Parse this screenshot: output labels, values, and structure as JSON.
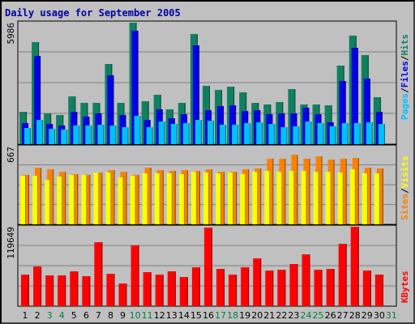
{
  "title": "Daily usage for September 2005",
  "colors": {
    "background": "#c0c0c0",
    "title": "#0000a0",
    "pages": "#00c0ff",
    "files": "#0000e8",
    "hits": "#108060",
    "visits": "#ffff00",
    "sites": "#ff8000",
    "kbytes": "#ff0000",
    "weekend_label": "#008040",
    "weekday_label": "#000000"
  },
  "chart_data": [
    {
      "type": "bar",
      "name": "Pages / Files / Hits",
      "ylabel_parts": [
        "Pages",
        "Files",
        "Hits"
      ],
      "ymax_label": "5986",
      "ylim": [
        0,
        5986
      ],
      "categories": [
        "1",
        "2",
        "3",
        "4",
        "5",
        "6",
        "7",
        "8",
        "9",
        "10",
        "11",
        "12",
        "13",
        "14",
        "15",
        "16",
        "17",
        "18",
        "19",
        "20",
        "21",
        "22",
        "23",
        "24",
        "25",
        "26",
        "27",
        "28",
        "29",
        "30",
        "31"
      ],
      "series": [
        {
          "name": "Hits",
          "values": [
            1600,
            5010,
            1530,
            1430,
            2350,
            2030,
            2050,
            3940,
            2030,
            6000,
            2100,
            2450,
            1700,
            2030,
            5420,
            2880,
            2670,
            2820,
            2560,
            2040,
            1950,
            2060,
            2730,
            1950,
            1940,
            1930,
            3870,
            5350,
            4370,
            2300,
            0
          ]
        },
        {
          "name": "Files",
          "values": [
            1040,
            4360,
            980,
            900,
            1590,
            1350,
            1530,
            3400,
            1420,
            5570,
            1190,
            1700,
            1270,
            1490,
            4850,
            1670,
            1860,
            1900,
            1620,
            1690,
            1490,
            1510,
            1510,
            1800,
            1460,
            1080,
            3130,
            4760,
            3220,
            1580,
            0
          ]
        },
        {
          "name": "Pages",
          "values": [
            800,
            1200,
            750,
            720,
            900,
            900,
            950,
            900,
            820,
            1400,
            850,
            1120,
            990,
            1020,
            1210,
            1170,
            960,
            940,
            1050,
            1070,
            1010,
            840,
            860,
            1120,
            1050,
            880,
            1030,
            1020,
            1080,
            1000,
            0
          ]
        }
      ]
    },
    {
      "type": "bar",
      "name": "Visits / Sites",
      "ylabel_parts": [
        "Visits",
        "Sites"
      ],
      "ymax_label": "667",
      "ylim": [
        0,
        667
      ],
      "categories": [
        "1",
        "2",
        "3",
        "4",
        "5",
        "6",
        "7",
        "8",
        "9",
        "10",
        "11",
        "12",
        "13",
        "14",
        "15",
        "16",
        "17",
        "18",
        "19",
        "20",
        "21",
        "22",
        "23",
        "24",
        "25",
        "26",
        "27",
        "28",
        "29",
        "30",
        "31"
      ],
      "series": [
        {
          "name": "Sites",
          "values": [
            425,
            485,
            475,
            450,
            430,
            425,
            445,
            465,
            455,
            425,
            485,
            465,
            460,
            465,
            460,
            470,
            455,
            450,
            470,
            480,
            565,
            565,
            600,
            565,
            585,
            555,
            565,
            570,
            485,
            480,
            0
          ]
        },
        {
          "name": "Visits",
          "values": [
            420,
            415,
            380,
            410,
            425,
            425,
            445,
            445,
            405,
            420,
            435,
            435,
            440,
            430,
            450,
            445,
            435,
            445,
            430,
            450,
            460,
            455,
            460,
            460,
            455,
            450,
            445,
            470,
            440,
            435,
            0
          ]
        }
      ]
    },
    {
      "type": "bar",
      "name": "KBytes",
      "ylabel_parts": [
        "KBytes"
      ],
      "ymax_label": "119649",
      "ylim": [
        0,
        119649
      ],
      "categories": [
        "1",
        "2",
        "3",
        "4",
        "5",
        "6",
        "7",
        "8",
        "9",
        "10",
        "11",
        "12",
        "13",
        "14",
        "15",
        "16",
        "17",
        "18",
        "19",
        "20",
        "21",
        "22",
        "23",
        "24",
        "25",
        "26",
        "27",
        "28",
        "29",
        "30",
        "31"
      ],
      "series": [
        {
          "name": "KBytes",
          "values": [
            48000,
            60000,
            47000,
            46500,
            52000,
            45500,
            97000,
            48500,
            34000,
            91000,
            51500,
            47500,
            52000,
            43500,
            59000,
            119000,
            56000,
            48000,
            59000,
            71500,
            53500,
            55000,
            63000,
            78000,
            55000,
            56700,
            93500,
            121000,
            54000,
            48000,
            0
          ]
        }
      ]
    }
  ],
  "days": [
    {
      "label": "1",
      "weekend": false
    },
    {
      "label": "2",
      "weekend": false
    },
    {
      "label": "3",
      "weekend": true
    },
    {
      "label": "4",
      "weekend": true
    },
    {
      "label": "5",
      "weekend": false
    },
    {
      "label": "6",
      "weekend": false
    },
    {
      "label": "7",
      "weekend": false
    },
    {
      "label": "8",
      "weekend": false
    },
    {
      "label": "9",
      "weekend": false
    },
    {
      "label": "10",
      "weekend": true
    },
    {
      "label": "11",
      "weekend": true
    },
    {
      "label": "12",
      "weekend": false
    },
    {
      "label": "13",
      "weekend": false
    },
    {
      "label": "14",
      "weekend": false
    },
    {
      "label": "15",
      "weekend": false
    },
    {
      "label": "16",
      "weekend": false
    },
    {
      "label": "17",
      "weekend": true
    },
    {
      "label": "18",
      "weekend": true
    },
    {
      "label": "19",
      "weekend": false
    },
    {
      "label": "20",
      "weekend": false
    },
    {
      "label": "21",
      "weekend": false
    },
    {
      "label": "22",
      "weekend": false
    },
    {
      "label": "23",
      "weekend": false
    },
    {
      "label": "24",
      "weekend": true
    },
    {
      "label": "25",
      "weekend": true
    },
    {
      "label": "26",
      "weekend": false
    },
    {
      "label": "27",
      "weekend": false
    },
    {
      "label": "28",
      "weekend": false
    },
    {
      "label": "29",
      "weekend": false
    },
    {
      "label": "30",
      "weekend": false
    },
    {
      "label": "31",
      "weekend": true
    }
  ]
}
